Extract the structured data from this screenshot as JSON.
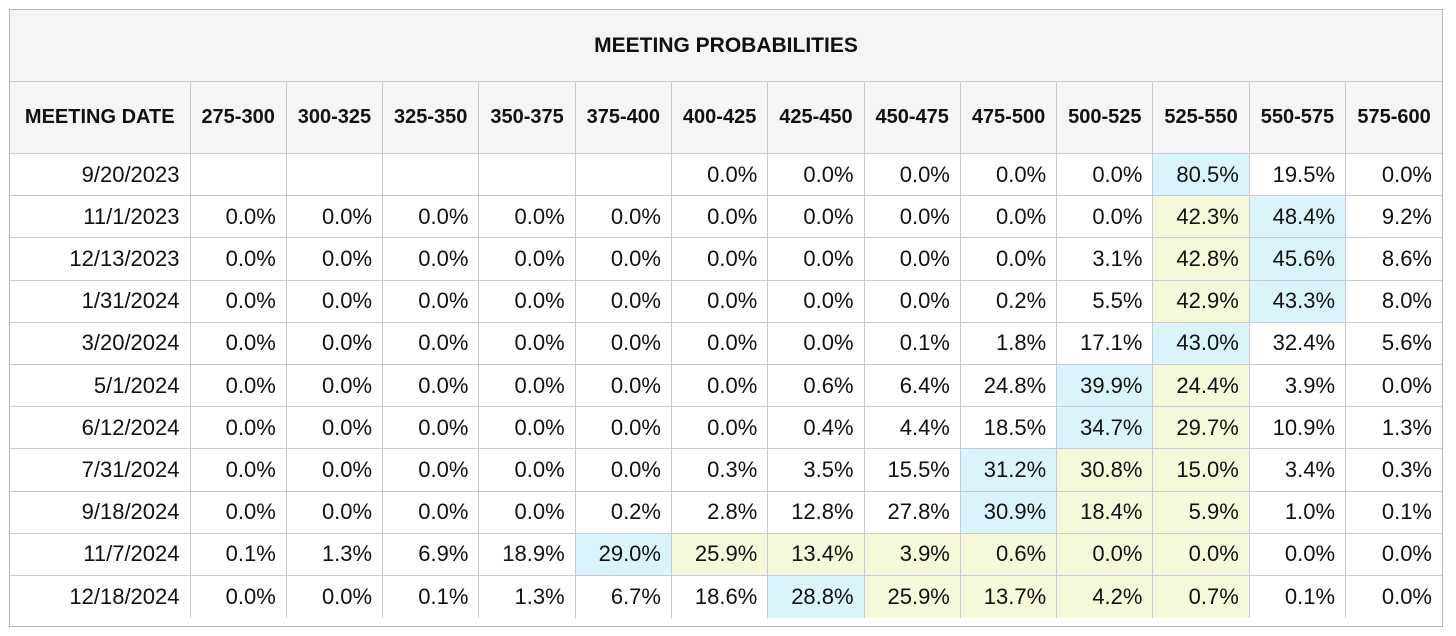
{
  "title": "MEETING PROBABILITIES",
  "header": {
    "date_label": "MEETING DATE",
    "ranges": [
      "275-300",
      "300-325",
      "325-350",
      "350-375",
      "375-400",
      "400-425",
      "425-450",
      "450-475",
      "475-500",
      "500-525",
      "525-550",
      "550-575",
      "575-600"
    ]
  },
  "colors": {
    "highlight_max": "#d9f4fb",
    "highlight_secondary": "#f7f7d9"
  },
  "rows": [
    {
      "date": "9/20/2023",
      "cells": [
        {
          "v": ""
        },
        {
          "v": ""
        },
        {
          "v": ""
        },
        {
          "v": ""
        },
        {
          "v": ""
        },
        {
          "v": "0.0%"
        },
        {
          "v": "0.0%"
        },
        {
          "v": "0.0%"
        },
        {
          "v": "0.0%"
        },
        {
          "v": "0.0%"
        },
        {
          "v": "80.5%",
          "h": "blue"
        },
        {
          "v": "19.5%"
        },
        {
          "v": "0.0%"
        }
      ]
    },
    {
      "date": "11/1/2023",
      "cells": [
        {
          "v": "0.0%"
        },
        {
          "v": "0.0%"
        },
        {
          "v": "0.0%"
        },
        {
          "v": "0.0%"
        },
        {
          "v": "0.0%"
        },
        {
          "v": "0.0%"
        },
        {
          "v": "0.0%"
        },
        {
          "v": "0.0%"
        },
        {
          "v": "0.0%"
        },
        {
          "v": "0.0%"
        },
        {
          "v": "42.3%",
          "h": "yellow"
        },
        {
          "v": "48.4%",
          "h": "blue"
        },
        {
          "v": "9.2%"
        }
      ]
    },
    {
      "date": "12/13/2023",
      "cells": [
        {
          "v": "0.0%"
        },
        {
          "v": "0.0%"
        },
        {
          "v": "0.0%"
        },
        {
          "v": "0.0%"
        },
        {
          "v": "0.0%"
        },
        {
          "v": "0.0%"
        },
        {
          "v": "0.0%"
        },
        {
          "v": "0.0%"
        },
        {
          "v": "0.0%"
        },
        {
          "v": "3.1%"
        },
        {
          "v": "42.8%",
          "h": "yellow"
        },
        {
          "v": "45.6%",
          "h": "blue"
        },
        {
          "v": "8.6%"
        }
      ]
    },
    {
      "date": "1/31/2024",
      "cells": [
        {
          "v": "0.0%"
        },
        {
          "v": "0.0%"
        },
        {
          "v": "0.0%"
        },
        {
          "v": "0.0%"
        },
        {
          "v": "0.0%"
        },
        {
          "v": "0.0%"
        },
        {
          "v": "0.0%"
        },
        {
          "v": "0.0%"
        },
        {
          "v": "0.2%"
        },
        {
          "v": "5.5%"
        },
        {
          "v": "42.9%",
          "h": "yellow"
        },
        {
          "v": "43.3%",
          "h": "blue"
        },
        {
          "v": "8.0%"
        }
      ]
    },
    {
      "date": "3/20/2024",
      "cells": [
        {
          "v": "0.0%"
        },
        {
          "v": "0.0%"
        },
        {
          "v": "0.0%"
        },
        {
          "v": "0.0%"
        },
        {
          "v": "0.0%"
        },
        {
          "v": "0.0%"
        },
        {
          "v": "0.0%"
        },
        {
          "v": "0.1%"
        },
        {
          "v": "1.8%"
        },
        {
          "v": "17.1%"
        },
        {
          "v": "43.0%",
          "h": "blue"
        },
        {
          "v": "32.4%"
        },
        {
          "v": "5.6%"
        }
      ]
    },
    {
      "date": "5/1/2024",
      "cells": [
        {
          "v": "0.0%"
        },
        {
          "v": "0.0%"
        },
        {
          "v": "0.0%"
        },
        {
          "v": "0.0%"
        },
        {
          "v": "0.0%"
        },
        {
          "v": "0.0%"
        },
        {
          "v": "0.6%"
        },
        {
          "v": "6.4%"
        },
        {
          "v": "24.8%"
        },
        {
          "v": "39.9%",
          "h": "blue"
        },
        {
          "v": "24.4%",
          "h": "yellow"
        },
        {
          "v": "3.9%"
        },
        {
          "v": "0.0%"
        }
      ]
    },
    {
      "date": "6/12/2024",
      "cells": [
        {
          "v": "0.0%"
        },
        {
          "v": "0.0%"
        },
        {
          "v": "0.0%"
        },
        {
          "v": "0.0%"
        },
        {
          "v": "0.0%"
        },
        {
          "v": "0.0%"
        },
        {
          "v": "0.4%"
        },
        {
          "v": "4.4%"
        },
        {
          "v": "18.5%"
        },
        {
          "v": "34.7%",
          "h": "blue"
        },
        {
          "v": "29.7%",
          "h": "yellow"
        },
        {
          "v": "10.9%"
        },
        {
          "v": "1.3%"
        }
      ]
    },
    {
      "date": "7/31/2024",
      "cells": [
        {
          "v": "0.0%"
        },
        {
          "v": "0.0%"
        },
        {
          "v": "0.0%"
        },
        {
          "v": "0.0%"
        },
        {
          "v": "0.0%"
        },
        {
          "v": "0.3%"
        },
        {
          "v": "3.5%"
        },
        {
          "v": "15.5%"
        },
        {
          "v": "31.2%",
          "h": "blue"
        },
        {
          "v": "30.8%",
          "h": "yellow"
        },
        {
          "v": "15.0%",
          "h": "yellow"
        },
        {
          "v": "3.4%"
        },
        {
          "v": "0.3%"
        }
      ]
    },
    {
      "date": "9/18/2024",
      "cells": [
        {
          "v": "0.0%"
        },
        {
          "v": "0.0%"
        },
        {
          "v": "0.0%"
        },
        {
          "v": "0.0%"
        },
        {
          "v": "0.2%"
        },
        {
          "v": "2.8%"
        },
        {
          "v": "12.8%"
        },
        {
          "v": "27.8%"
        },
        {
          "v": "30.9%",
          "h": "blue"
        },
        {
          "v": "18.4%",
          "h": "yellow"
        },
        {
          "v": "5.9%",
          "h": "yellow"
        },
        {
          "v": "1.0%"
        },
        {
          "v": "0.1%"
        }
      ]
    },
    {
      "date": "11/7/2024",
      "cells": [
        {
          "v": "0.1%"
        },
        {
          "v": "1.3%"
        },
        {
          "v": "6.9%"
        },
        {
          "v": "18.9%"
        },
        {
          "v": "29.0%",
          "h": "blue"
        },
        {
          "v": "25.9%",
          "h": "yellow"
        },
        {
          "v": "13.4%",
          "h": "yellow"
        },
        {
          "v": "3.9%",
          "h": "yellow"
        },
        {
          "v": "0.6%",
          "h": "yellow"
        },
        {
          "v": "0.0%",
          "h": "yellow"
        },
        {
          "v": "0.0%",
          "h": "yellow"
        },
        {
          "v": "0.0%"
        },
        {
          "v": "0.0%"
        }
      ]
    },
    {
      "date": "12/18/2024",
      "cells": [
        {
          "v": "0.0%"
        },
        {
          "v": "0.0%"
        },
        {
          "v": "0.1%"
        },
        {
          "v": "1.3%"
        },
        {
          "v": "6.7%"
        },
        {
          "v": "18.6%"
        },
        {
          "v": "28.8%",
          "h": "blue"
        },
        {
          "v": "25.9%",
          "h": "yellow"
        },
        {
          "v": "13.7%",
          "h": "yellow"
        },
        {
          "v": "4.2%",
          "h": "yellow"
        },
        {
          "v": "0.7%",
          "h": "yellow"
        },
        {
          "v": "0.1%"
        },
        {
          "v": "0.0%"
        }
      ]
    }
  ]
}
